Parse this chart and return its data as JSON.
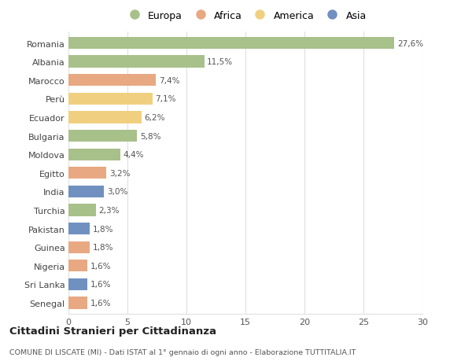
{
  "countries": [
    "Romania",
    "Albania",
    "Marocco",
    "Perù",
    "Ecuador",
    "Bulgaria",
    "Moldova",
    "Egitto",
    "India",
    "Turchia",
    "Pakistan",
    "Guinea",
    "Nigeria",
    "Sri Lanka",
    "Senegal"
  ],
  "values": [
    27.6,
    11.5,
    7.4,
    7.1,
    6.2,
    5.8,
    4.4,
    3.2,
    3.0,
    2.3,
    1.8,
    1.8,
    1.6,
    1.6,
    1.6
  ],
  "labels": [
    "27,6%",
    "11,5%",
    "7,4%",
    "7,1%",
    "6,2%",
    "5,8%",
    "4,4%",
    "3,2%",
    "3,0%",
    "2,3%",
    "1,8%",
    "1,8%",
    "1,6%",
    "1,6%",
    "1,6%"
  ],
  "continents": [
    "Europa",
    "Europa",
    "Africa",
    "America",
    "America",
    "Europa",
    "Europa",
    "Africa",
    "Asia",
    "Europa",
    "Asia",
    "Africa",
    "Africa",
    "Asia",
    "Africa"
  ],
  "colors": {
    "Europa": "#a8c08a",
    "Africa": "#e8a882",
    "America": "#f0d080",
    "Asia": "#7090c0"
  },
  "legend_labels": [
    "Europa",
    "Africa",
    "America",
    "Asia"
  ],
  "legend_colors": [
    "#a8c08a",
    "#e8a882",
    "#f0d080",
    "#7090c0"
  ],
  "title": "Cittadini Stranieri per Cittadinanza",
  "subtitle": "COMUNE DI LISCATE (MI) - Dati ISTAT al 1° gennaio di ogni anno - Elaborazione TUTTITALIA.IT",
  "xlim": [
    0,
    30
  ],
  "xticks": [
    0,
    5,
    10,
    15,
    20,
    25,
    30
  ],
  "background_color": "#ffffff",
  "grid_color": "#e0e0e0"
}
